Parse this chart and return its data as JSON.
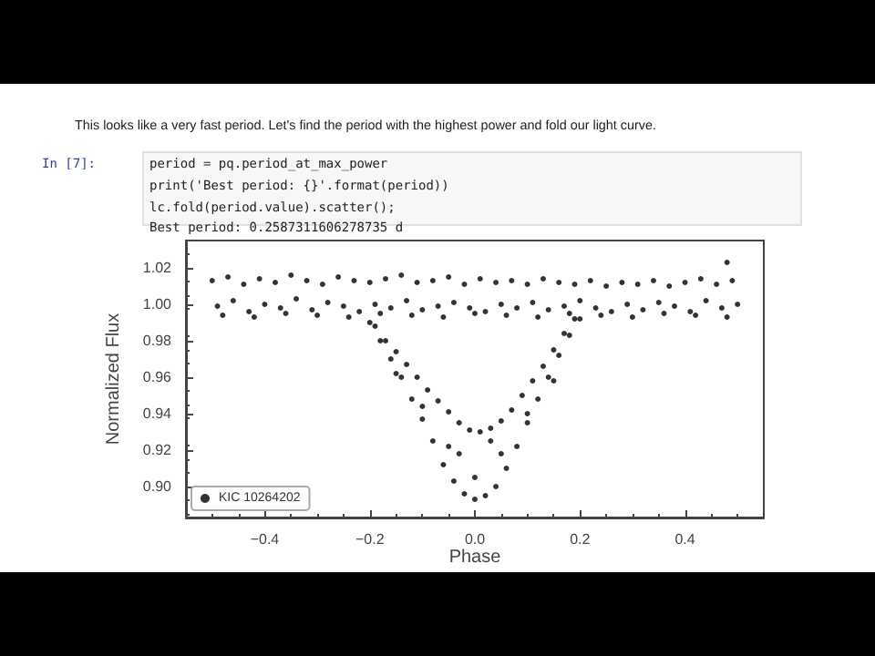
{
  "chart_data": {
    "type": "scatter",
    "xlabel": "Phase",
    "ylabel": "Normalized Flux",
    "annotations": [
      "This looks like a very fast period. Let's find the period with the highest power and fold our light curve.",
      "In [7]:",
      "period = pq.period_at_max_power",
      "print('Best period: {}'.format(period))",
      "lc.fold(period.value).scatter();",
      "Best period: 0.2587311606278735 d"
    ],
    "series": [
      {
        "name": "KIC 10264202",
        "color": "#000000",
        "x": [
          -0.5,
          -0.47,
          -0.44,
          -0.41,
          -0.38,
          -0.35,
          -0.32,
          -0.29,
          -0.26,
          -0.23,
          -0.2,
          -0.17,
          -0.14,
          -0.11,
          -0.08,
          -0.05,
          -0.02,
          0.01,
          0.04,
          0.07,
          0.1,
          0.13,
          0.16,
          0.19,
          0.22,
          0.25,
          0.28,
          0.31,
          0.34,
          0.37,
          0.4,
          0.43,
          0.46,
          0.49,
          -0.49,
          -0.46,
          -0.43,
          -0.4,
          -0.37,
          -0.34,
          -0.31,
          -0.28,
          -0.25,
          -0.22,
          -0.19,
          -0.16,
          -0.13,
          -0.1,
          -0.07,
          -0.04,
          -0.01,
          0.02,
          0.05,
          0.08,
          0.11,
          0.14,
          0.17,
          0.2,
          0.23,
          0.26,
          0.29,
          0.32,
          0.35,
          0.38,
          0.41,
          0.44,
          0.47,
          0.5,
          -0.48,
          -0.42,
          -0.36,
          -0.3,
          -0.24,
          -0.18,
          -0.12,
          -0.06,
          0.0,
          0.06,
          0.12,
          0.18,
          0.24,
          0.3,
          0.36,
          0.42,
          0.48,
          -0.2,
          -0.18,
          -0.16,
          -0.14,
          -0.12,
          -0.1,
          -0.08,
          -0.06,
          -0.04,
          -0.02,
          0.0,
          0.02,
          0.04,
          0.06,
          0.08,
          0.1,
          0.12,
          0.14,
          0.16,
          0.18,
          0.2,
          -0.19,
          -0.17,
          -0.15,
          -0.13,
          -0.11,
          -0.09,
          -0.07,
          -0.05,
          -0.03,
          -0.01,
          0.01,
          0.03,
          0.05,
          0.07,
          0.09,
          0.11,
          0.13,
          0.15,
          0.17,
          0.19,
          -0.15,
          -0.1,
          -0.05,
          0.0,
          0.05,
          0.1,
          0.15,
          -0.03,
          0.03,
          0.48
        ],
        "values": [
          1.013,
          1.015,
          1.011,
          1.014,
          1.012,
          1.016,
          1.013,
          1.011,
          1.015,
          1.013,
          1.012,
          1.014,
          1.016,
          1.012,
          1.013,
          1.015,
          1.011,
          1.014,
          1.012,
          1.013,
          1.011,
          1.014,
          1.012,
          1.011,
          1.013,
          1.01,
          1.012,
          1.011,
          1.013,
          1.01,
          1.012,
          1.014,
          1.011,
          1.013,
          0.999,
          1.002,
          0.996,
          1.0,
          0.998,
          1.003,
          0.997,
          1.001,
          0.999,
          0.996,
          1.0,
          0.998,
          1.002,
          0.997,
          0.999,
          1.001,
          0.998,
          0.996,
          1.0,
          0.998,
          1.001,
          0.997,
          0.999,
          1.002,
          0.998,
          0.996,
          1.0,
          0.997,
          1.001,
          0.999,
          0.996,
          1.002,
          0.998,
          1.0,
          0.994,
          0.993,
          0.995,
          0.994,
          0.993,
          0.995,
          0.994,
          0.993,
          0.995,
          0.994,
          0.993,
          0.995,
          0.994,
          0.993,
          0.995,
          0.994,
          0.993,
          0.99,
          0.98,
          0.97,
          0.96,
          0.948,
          0.937,
          0.925,
          0.912,
          0.903,
          0.896,
          0.893,
          0.895,
          0.9,
          0.91,
          0.922,
          0.935,
          0.948,
          0.96,
          0.972,
          0.983,
          0.992,
          0.988,
          0.98,
          0.974,
          0.967,
          0.96,
          0.953,
          0.947,
          0.941,
          0.935,
          0.931,
          0.93,
          0.932,
          0.936,
          0.942,
          0.95,
          0.958,
          0.966,
          0.975,
          0.984,
          0.992,
          0.962,
          0.944,
          0.922,
          0.905,
          0.918,
          0.94,
          0.958,
          0.918,
          0.925,
          1.023
        ]
      }
    ],
    "xlim": [
      -0.55,
      0.55
    ],
    "ylim": [
      0.883,
      1.035
    ],
    "xticks": [
      {
        "value": -0.4,
        "label": "−0.4"
      },
      {
        "value": -0.2,
        "label": "−0.2"
      },
      {
        "value": 0,
        "label": "0.0"
      },
      {
        "value": 0.2,
        "label": "0.2"
      },
      {
        "value": 0.4,
        "label": "0.4"
      }
    ],
    "yticks": [
      {
        "value": 0.9,
        "label": "0.90"
      },
      {
        "value": 0.92,
        "label": "0.92"
      },
      {
        "value": 0.94,
        "label": "0.94"
      },
      {
        "value": 0.96,
        "label": "0.96"
      },
      {
        "value": 0.98,
        "label": "0.98"
      },
      {
        "value": 1.0,
        "label": "1.00"
      },
      {
        "value": 1.02,
        "label": "1.02"
      }
    ],
    "grid": false,
    "legend": "bottom left",
    "marker": "circle"
  }
}
